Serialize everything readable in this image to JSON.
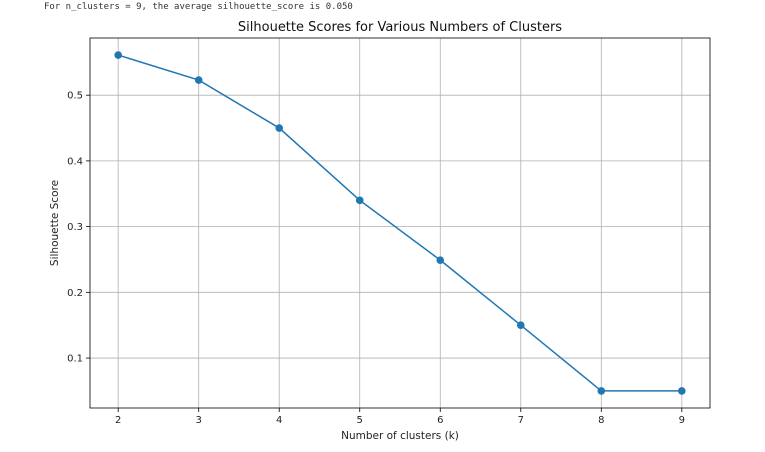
{
  "console": {
    "output_line": "For n_clusters = 9, the average silhouette_score is 0.050"
  },
  "chart_data": {
    "type": "line",
    "title": "Silhouette Scores for Various Numbers of Clusters",
    "xlabel": "Number of clusters (k)",
    "ylabel": "Silhouette Score",
    "x": [
      2,
      3,
      4,
      5,
      6,
      7,
      8,
      9
    ],
    "y": [
      0.561,
      0.523,
      0.45,
      0.34,
      0.249,
      0.15,
      0.05,
      0.05
    ],
    "xticks": [
      2,
      3,
      4,
      5,
      6,
      7,
      8,
      9
    ],
    "yticks": [
      0.1,
      0.2,
      0.3,
      0.4,
      0.5
    ],
    "xlim": [
      1.65,
      9.35
    ],
    "ylim": [
      0.024,
      0.587
    ],
    "grid": true,
    "marker": "circle",
    "line_color": "#1f77b4"
  }
}
